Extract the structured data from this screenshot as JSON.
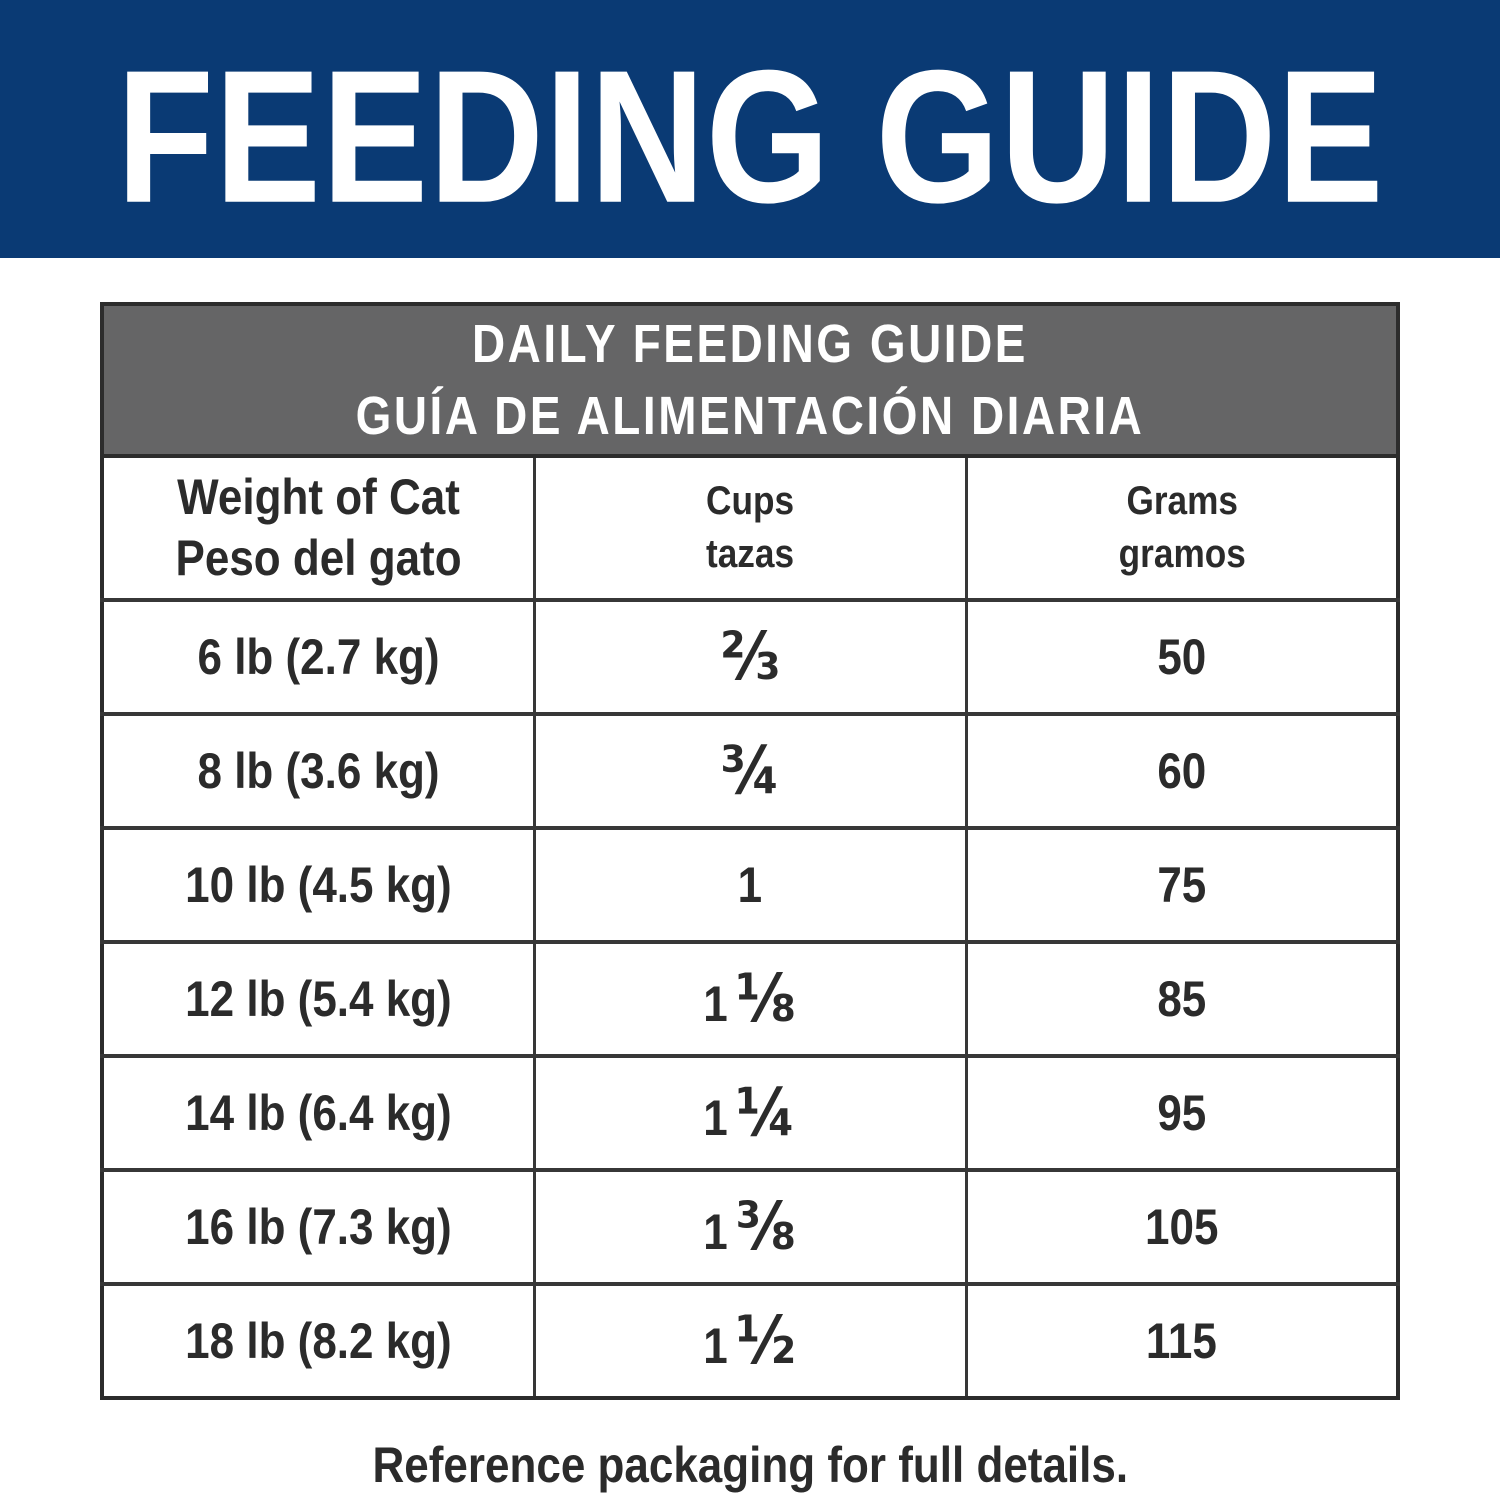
{
  "banner": {
    "title": "FEEDING GUIDE"
  },
  "colors": {
    "banner_blue": "#0a3a74",
    "band_gray": "#656566",
    "border_dark": "#2c2c2c",
    "text_dark": "#2b2b2b"
  },
  "table": {
    "title_line1": "DAILY FEEDING GUIDE",
    "title_line2": "GUÍA DE ALIMENTACIÓN DIARIA",
    "columns": [
      {
        "en": "Weight of Cat",
        "es": "Peso del gato"
      },
      {
        "en": "Cups",
        "es": "tazas"
      },
      {
        "en": "Grams",
        "es": "gramos"
      }
    ],
    "rows": [
      {
        "weight": "6 lb (2.7 kg)",
        "cups_whole": "",
        "cups_frac": "⅔",
        "grams": "50"
      },
      {
        "weight": "8 lb (3.6 kg)",
        "cups_whole": "",
        "cups_frac": "¾",
        "grams": "60"
      },
      {
        "weight": "10 lb (4.5 kg)",
        "cups_whole": "1",
        "cups_frac": "",
        "grams": "75"
      },
      {
        "weight": "12 lb (5.4 kg)",
        "cups_whole": "1",
        "cups_frac": "⅛",
        "grams": "85"
      },
      {
        "weight": "14 lb (6.4 kg)",
        "cups_whole": "1",
        "cups_frac": "¼",
        "grams": "95"
      },
      {
        "weight": "16 lb (7.3 kg)",
        "cups_whole": "1",
        "cups_frac": "⅜",
        "grams": "105"
      },
      {
        "weight": "18 lb (8.2 kg)",
        "cups_whole": "1",
        "cups_frac": "½",
        "grams": "115"
      }
    ]
  },
  "footer": {
    "note": "Reference packaging for full details."
  }
}
